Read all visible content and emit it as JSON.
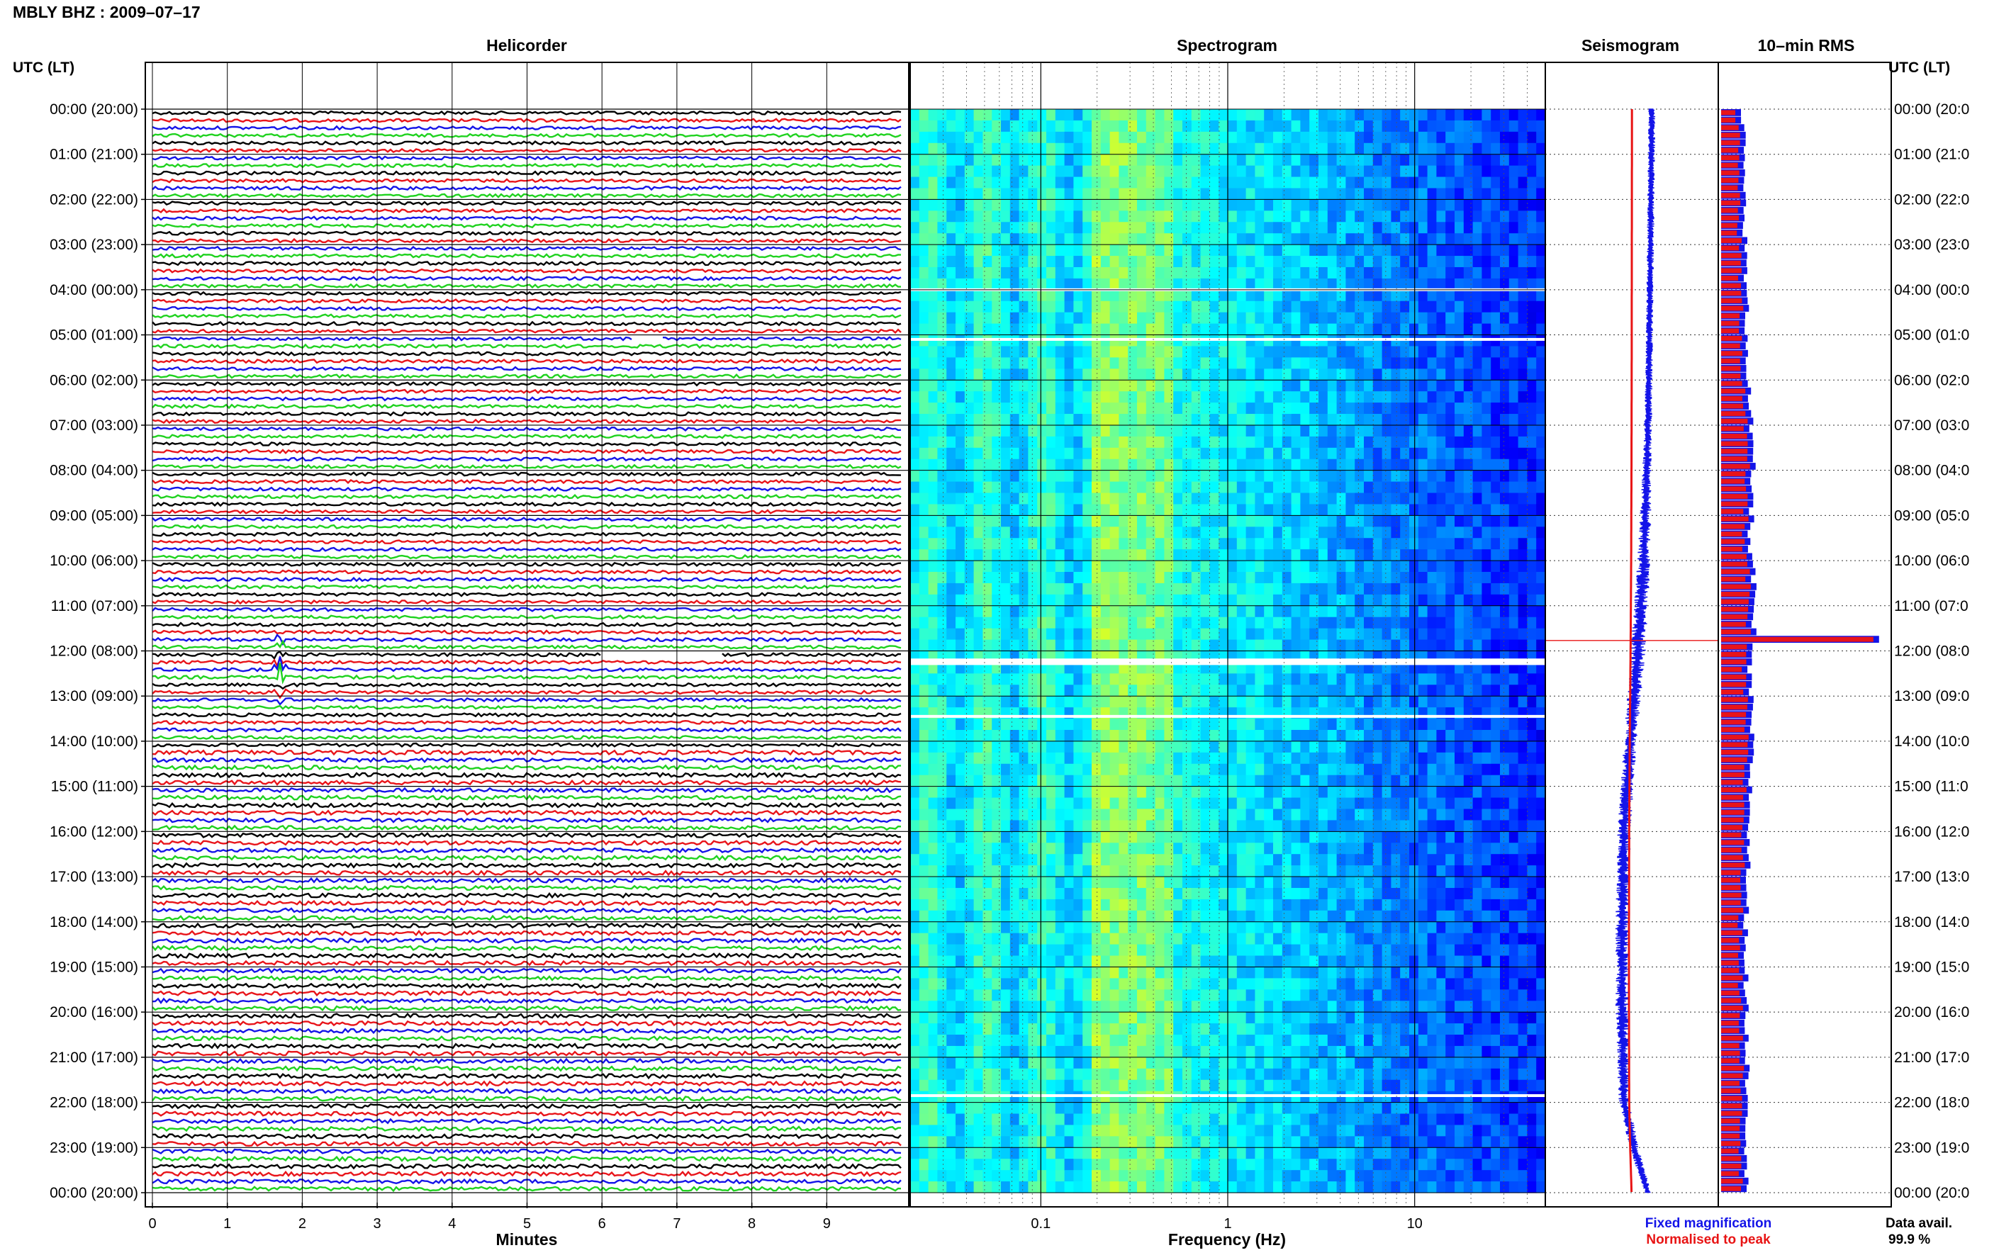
{
  "station_title": "MBLY BHZ : 2009–07–17",
  "panels": {
    "helicorder": "Helicorder",
    "spectrogram": "Spectrogram",
    "seismogram": "Seismogram",
    "rms": "10–min RMS"
  },
  "utc_label_left": "UTC (LT)",
  "utc_label_right": "UTC (LT)",
  "time_labels": [
    "00:00 (20:00)",
    "01:00 (21:00)",
    "02:00 (22:00)",
    "03:00 (23:00)",
    "04:00 (00:00)",
    "05:00 (01:00)",
    "06:00 (02:00)",
    "07:00 (03:00)",
    "08:00 (04:00)",
    "09:00 (05:00)",
    "10:00 (06:00)",
    "11:00 (07:00)",
    "12:00 (08:00)",
    "13:00 (09:00)",
    "14:00 (10:00)",
    "15:00 (11:00)",
    "16:00 (12:00)",
    "17:00 (13:00)",
    "18:00 (14:00)",
    "19:00 (15:00)",
    "20:00 (16:00)",
    "21:00 (17:00)",
    "22:00 (18:00)",
    "23:00 (19:00)",
    "00:00 (20:00)"
  ],
  "time_labels_right": [
    "00:00 (20:0",
    "01:00 (21:0",
    "02:00 (22:0",
    "03:00 (23:0",
    "04:00 (00:0",
    "05:00 (01:0",
    "06:00 (02:0",
    "07:00 (03:0",
    "08:00 (04:0",
    "09:00 (05:0",
    "10:00 (06:0",
    "11:00 (07:0",
    "12:00 (08:0",
    "13:00 (09:0",
    "14:00 (10:0",
    "15:00 (11:0",
    "16:00 (12:0",
    "17:00 (13:0",
    "18:00 (14:0",
    "19:00 (15:0",
    "20:00 (16:0",
    "21:00 (17:0",
    "22:00 (18:0",
    "23:00 (19:0",
    "00:00 (20:0"
  ],
  "minutes_ticks": [
    "0",
    "1",
    "2",
    "3",
    "4",
    "5",
    "6",
    "7",
    "8",
    "9"
  ],
  "minutes_label": "Minutes",
  "frequency_ticks": [
    "0.1",
    "1",
    "10"
  ],
  "frequency_label": "Frequency (Hz)",
  "legend": {
    "fixed": "Fixed magnification",
    "normalised": "Normalised to peak"
  },
  "data_avail_label": "Data avail.",
  "data_avail_value": "99.9 %",
  "colors": {
    "trace_cycle": [
      "#000000",
      "#e8141a",
      "#1414e8",
      "#1fd21f"
    ],
    "fixed": "#1414e8",
    "normalised": "#e81414",
    "rms_fill": "#e8141a",
    "rms_edge": "#1414e8"
  },
  "chart_data": [
    {
      "type": "line",
      "title": "Helicorder",
      "xlabel": "Minutes",
      "ylabel": "UTC (LT)",
      "xlim": [
        0,
        10
      ],
      "rows_per_hour": 6,
      "rows": 144,
      "events": [
        {
          "time_utc": "11:40",
          "minute": 1.7,
          "rows": [
            70,
            71,
            72,
            73,
            74,
            75,
            76,
            77,
            78
          ],
          "description": "large transient on blue and red traces"
        }
      ],
      "gaps": [
        {
          "time_utc": "05:00",
          "minute_start": 6.4,
          "minute_end": 6.8
        },
        {
          "time_utc": "12:00",
          "minute_start": 6.0,
          "minute_end": 7.6
        }
      ]
    },
    {
      "type": "heatmap",
      "title": "Spectrogram",
      "xlabel": "Frequency (Hz)",
      "xscale": "log",
      "xlim": [
        0.02,
        50
      ],
      "ylabel": "UTC (LT)",
      "ylim_hours": [
        0,
        24
      ],
      "colormap": "jet",
      "data_gaps_hours": [
        4.0,
        5.1,
        12.2,
        12.25,
        13.45,
        21.85
      ]
    },
    {
      "type": "line",
      "title": "Seismogram",
      "series": [
        {
          "name": "Fixed magnification",
          "hours": [
            0,
            2,
            4,
            6,
            8,
            10,
            12,
            14,
            16,
            18,
            20,
            22,
            23,
            24
          ],
          "level": [
            0.8,
            0.75,
            0.7,
            0.65,
            0.55,
            0.4,
            0.1,
            -0.3,
            -0.6,
            -0.7,
            -0.7,
            -0.6,
            -0.1,
            0.6
          ],
          "spread": [
            0.1,
            0.1,
            0.1,
            0.1,
            0.15,
            0.25,
            0.3,
            0.25,
            0.25,
            0.25,
            0.25,
            0.2,
            0.15,
            0.1
          ]
        },
        {
          "name": "Normalised to peak",
          "hours": [
            0,
            24
          ],
          "level": [
            0,
            0
          ]
        }
      ],
      "events": [
        {
          "hour": 11.77,
          "description": "thin horizontal red spike across panel"
        }
      ]
    },
    {
      "type": "bar",
      "title": "10–min RMS",
      "orientation": "horizontal",
      "interval_minutes": 10,
      "hours": [
        0,
        2,
        4,
        6,
        8,
        10,
        11.7,
        12,
        14,
        16,
        18,
        20,
        22,
        24
      ],
      "rms": [
        0.55,
        0.58,
        0.62,
        0.68,
        0.78,
        0.72,
        4.2,
        0.7,
        0.76,
        0.7,
        0.62,
        0.62,
        0.68,
        0.62
      ],
      "note": "Relative bar lengths; the 11:40 UTC bin is the dominant peak."
    }
  ]
}
